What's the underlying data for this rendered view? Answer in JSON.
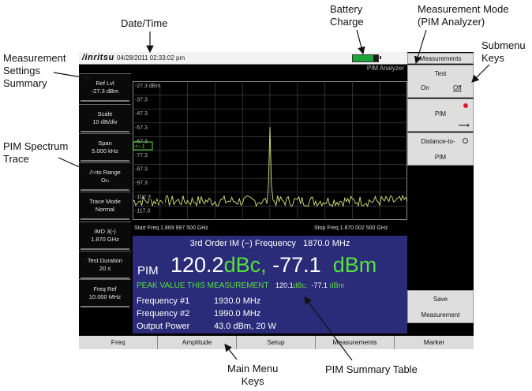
{
  "callouts": {
    "date_time": "Date/Time",
    "battery_line1": "Battery",
    "battery_line2": "Charge",
    "mode_line1": "Measurement Mode",
    "mode_line2": "(PIM Analyzer)",
    "submenu_line1": "Submenu",
    "submenu_line2": "Keys",
    "settings_line1": "Measurement",
    "settings_line2": "Settings",
    "settings_line3": "Summary",
    "trace_line1": "PIM Spectrum",
    "trace_line2": "Trace",
    "mainmenu_line1": "Main Menu",
    "mainmenu_line2": "Keys",
    "summary_table": "PIM Summary Table"
  },
  "topbar": {
    "logo": "/inritsu",
    "datetime": "04/28/2011 02:33:02 pm",
    "battery_level": 0.8,
    "mode": "PIM Analyzer"
  },
  "settings": [
    {
      "line1": "Ref Lvl",
      "line2": "-27.3 dBm"
    },
    {
      "line1": "Scale",
      "line2": "10 dB/div"
    },
    {
      "line1": "Span",
      "line2": "5.000 kHz"
    },
    {
      "line1": "Auto Range",
      "line2": "On"
    },
    {
      "line1": "Trace Mode",
      "line2": "Normal"
    },
    {
      "line1": "IMD 3(-)",
      "line2": "1.870 GHz"
    },
    {
      "line1": "Test Duration",
      "line2": "20 s"
    },
    {
      "line1": "Freq Ref",
      "line2": "10.000 MHz"
    }
  ],
  "graph": {
    "y_labels": [
      "-27.3 dBm",
      "-37.3",
      "-47.3",
      "-57.3",
      "-67.3",
      "-77.3",
      "-87.3",
      "-97.3",
      "-107.3",
      "-117.3"
    ],
    "marker": "<--1",
    "start_freq": "Start Freq 1.869 997 500 GHz",
    "stop_freq": "Stop Freq 1.870 002 500 GHz",
    "trace_color": "#d9e37a"
  },
  "summary": {
    "im_label": "3rd Order IM (−) Frequency",
    "im_value": "1870.0 MHz",
    "pim_label": "PIM",
    "pim_dbc": "120.2",
    "pim_dbc_unit": "dBc,",
    "pim_dbm": "-77.1",
    "pim_dbm_unit": "dBm",
    "peak_label": "PEAK VALUE THIS MEASUREMENT",
    "peak_dbc": "120.1",
    "peak_dbc_unit": "dBc,",
    "peak_dbm": "-77.1",
    "peak_dbm_unit": "dBm",
    "rows": [
      {
        "label": "Frequency #1",
        "value": "1930.0 MHz"
      },
      {
        "label": "Frequency #2",
        "value": "1990.0 MHz"
      },
      {
        "label": "Output Power",
        "value": "43.0 dBm, 20 W"
      }
    ]
  },
  "submenu": {
    "title": "Measurements",
    "test_label": "Test",
    "test_on": "On",
    "test_off": "Off",
    "pim_label": "PIM",
    "dtp_line1": "Distance-to-",
    "dtp_line2": "PIM",
    "save_line1": "Save",
    "save_line2": "Measurement"
  },
  "main_menu": [
    "Freq",
    "Amplitude",
    "Setup",
    "Measurements",
    "Marker"
  ]
}
